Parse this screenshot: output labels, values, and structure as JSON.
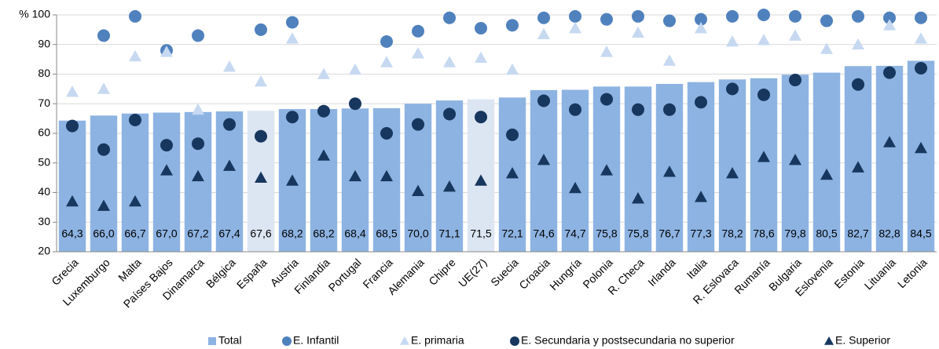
{
  "chart_data": {
    "type": "bar",
    "categories": [
      "Grecia",
      "Luxemburgo",
      "Malta",
      "Países Bajos",
      "Dinamarca",
      "Bélgica",
      "España",
      "Austria",
      "Finlandia",
      "Portugal",
      "Francia",
      "Alemania",
      "Chipre",
      "UE(27)",
      "Suecia",
      "Croacia",
      "Hungría",
      "Polonia",
      "R. Checa",
      "Irlanda",
      "Italia",
      "R. Eslovaca",
      "Rumanía",
      "Bulgaria",
      "Eslovenia",
      "Estonia",
      "Lituania",
      "Letonia"
    ],
    "series": [
      {
        "name": "Total",
        "marker": "bar",
        "color": "#8db3e2",
        "colors": [
          "#8db3e2",
          "#8db3e2",
          "#8db3e2",
          "#8db3e2",
          "#8db3e2",
          "#8db3e2",
          "#dce6f2",
          "#8db3e2",
          "#8db3e2",
          "#8db3e2",
          "#8db3e2",
          "#8db3e2",
          "#8db3e2",
          "#dce6f2",
          "#8db3e2",
          "#8db3e2",
          "#8db3e2",
          "#8db3e2",
          "#8db3e2",
          "#8db3e2",
          "#8db3e2",
          "#8db3e2",
          "#8db3e2",
          "#8db3e2",
          "#8db3e2",
          "#8db3e2",
          "#8db3e2",
          "#8db3e2"
        ],
        "values": [
          64.3,
          66.0,
          66.7,
          67.0,
          67.2,
          67.4,
          67.6,
          68.2,
          68.2,
          68.4,
          68.5,
          70.0,
          71.1,
          71.5,
          72.1,
          74.6,
          74.7,
          75.8,
          75.8,
          76.7,
          77.3,
          78.2,
          78.6,
          79.8,
          80.5,
          82.7,
          82.8,
          84.5
        ],
        "value_labels": [
          "64,3",
          "66,0",
          "66,7",
          "67,0",
          "67,2",
          "67,4",
          "67,6",
          "68,2",
          "68,2",
          "68,4",
          "68,5",
          "70,0",
          "71,1",
          "71,5",
          "72,1",
          "74,6",
          "74,7",
          "75,8",
          "75,8",
          "76,7",
          "77,3",
          "78,2",
          "78,6",
          "79,8",
          "80,5",
          "82,7",
          "82,8",
          "84,5"
        ]
      },
      {
        "name": "E. Infantil",
        "marker": "circle",
        "color": "#4f81bd",
        "values": [
          null,
          93,
          99.5,
          88,
          93,
          null,
          95,
          97.5,
          null,
          null,
          91,
          94.5,
          99,
          95.5,
          96.5,
          99,
          99.5,
          98.5,
          99.5,
          98,
          98.5,
          99.5,
          100,
          99.5,
          98,
          99.5,
          99,
          99
        ]
      },
      {
        "name": "E. primaria",
        "marker": "triangle",
        "color": "#c6d9f1",
        "values": [
          74,
          75,
          86,
          87.5,
          68,
          82.5,
          77.5,
          92,
          80,
          81.5,
          84,
          87,
          84,
          85.5,
          81.5,
          93.5,
          95.5,
          87.5,
          94,
          84.5,
          95.5,
          91,
          91.5,
          93,
          88.5,
          90,
          96.5,
          92
        ]
      },
      {
        "name": "E. Secundaria y postsecundaria no superior",
        "marker": "circle",
        "color": "#17375e",
        "values": [
          62.5,
          54.5,
          64.5,
          56,
          56.5,
          63,
          59,
          65.5,
          67.5,
          70,
          60,
          63,
          66.5,
          65.5,
          59.5,
          71,
          68,
          71.5,
          68,
          68,
          70.5,
          75,
          73,
          78,
          null,
          76.5,
          80.5,
          82
        ]
      },
      {
        "name": "E. Superior",
        "marker": "triangle",
        "color": "#17375e",
        "values": [
          37,
          35.5,
          37,
          47.5,
          45.5,
          49,
          45,
          44,
          52.5,
          45.5,
          45.5,
          40.5,
          42,
          44,
          46.5,
          51,
          41.5,
          47.5,
          38,
          47,
          38.5,
          46.5,
          52,
          51,
          46,
          48.5,
          57,
          55
        ]
      }
    ],
    "ylim": [
      20,
      100
    ],
    "yticks": [
      20,
      30,
      40,
      50,
      60,
      70,
      80,
      {
        "value": 90,
        "label": "90"
      },
      {
        "value": 100,
        "label": "% 100"
      }
    ],
    "grid": true
  }
}
